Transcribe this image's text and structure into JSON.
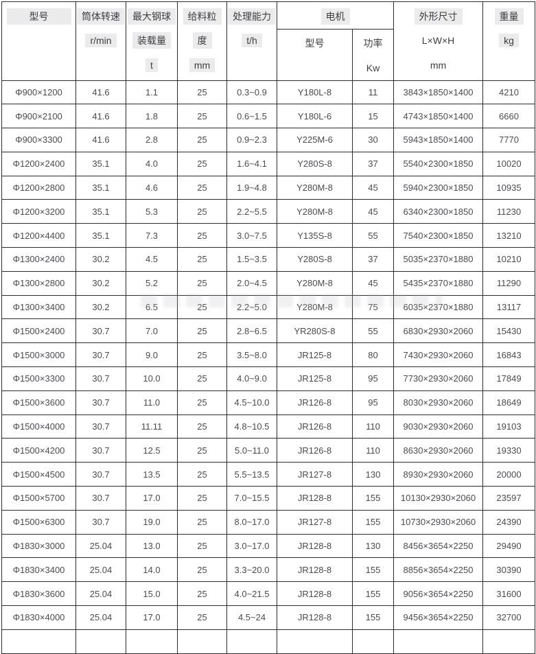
{
  "colors": {
    "header_highlight": "#ebebeb",
    "border": "#2b2b2b",
    "header_text": "#3d3d44",
    "cell_text": "#4a4a52",
    "background": "#ffffff"
  },
  "chart_data": {
    "type": "table",
    "motor_group": {
      "label": "电机"
    },
    "columns": [
      {
        "key": "model",
        "label_lines": [
          "型号"
        ]
      },
      {
        "key": "speed_rpm",
        "label_lines": [
          "筒体转速",
          "r/min"
        ]
      },
      {
        "key": "max_ball_load_t",
        "label_lines": [
          "最大钢球",
          "装载量",
          "t"
        ]
      },
      {
        "key": "feed_size_mm",
        "label_lines": [
          "给料粒",
          "度",
          "mm"
        ]
      },
      {
        "key": "capacity_tph",
        "label_lines": [
          "处理能力",
          "t/h"
        ]
      },
      {
        "key": "motor_model",
        "label_lines": [
          "型号"
        ],
        "group": "电机"
      },
      {
        "key": "motor_power_kw",
        "label_lines": [
          "功率",
          "Kw"
        ],
        "group": "电机"
      },
      {
        "key": "dimensions_lwh_mm",
        "label_lines": [
          "外形尺寸",
          "L×W×H",
          "mm"
        ]
      },
      {
        "key": "weight_kg",
        "label_lines": [
          "重量",
          "kg"
        ]
      }
    ],
    "rows": [
      [
        "Φ900×1200",
        "41.6",
        "1.1",
        "25",
        "0.3~0.9",
        "Y180L-8",
        "11",
        "3843×1850×1400",
        "4210"
      ],
      [
        "Φ900×2100",
        "41.6",
        "1.8",
        "25",
        "0.6~1.5",
        "Y180L-6",
        "15",
        "4743×1850×1400",
        "6660"
      ],
      [
        "Φ900×3300",
        "41.6",
        "2.8",
        "25",
        "0.9~2.3",
        "Y225M-6",
        "30",
        "5943×1850×1400",
        "7770"
      ],
      [
        "Φ1200×2400",
        "35.1",
        "4.0",
        "25",
        "1.6~4.1",
        "Y280S-8",
        "37",
        "5540×2300×1850",
        "10020"
      ],
      [
        "Φ1200×2800",
        "35.1",
        "4.6",
        "25",
        "1.9~4.8",
        "Y280M-8",
        "45",
        "5940×2300×1850",
        "10935"
      ],
      [
        "Φ1200×3200",
        "35.1",
        "5.3",
        "25",
        "2.2~5.5",
        "Y280M-8",
        "45",
        "6340×2300×1850",
        "11230"
      ],
      [
        "Φ1200×4400",
        "35.1",
        "7.3",
        "25",
        "3.0~7.5",
        "Y135S-8",
        "55",
        "7540×2300×1850",
        "13210"
      ],
      [
        "Φ1300×2400",
        "30.2",
        "4.5",
        "25",
        "1.5~3.5",
        "Y280S-8",
        "37",
        "5035×2370×1880",
        "10210"
      ],
      [
        "Φ1300×2800",
        "30.2",
        "5.2",
        "25",
        "2.0~4.5",
        "Y280M-8",
        "45",
        "5435×2370×1880",
        "11290"
      ],
      [
        "Φ1300×3400",
        "30.2",
        "6.5",
        "25",
        "2.2~5.0",
        "Y280M-8",
        "75",
        "6035×2370×1880",
        "13117"
      ],
      [
        "Φ1500×2400",
        "30.7",
        "7.0",
        "25",
        "2.8~6.5",
        "YR280S-8",
        "55",
        "6830×2930×2060",
        "15430"
      ],
      [
        "Φ1500×3000",
        "30.7",
        "9.0",
        "25",
        "3.5~8.0",
        "JR125-8",
        "80",
        "7430×2930×2060",
        "16843"
      ],
      [
        "Φ1500×3300",
        "30.7",
        "10.0",
        "25",
        "4.0~9.0",
        "JR125-8",
        "95",
        "7730×2930×2060",
        "17849"
      ],
      [
        "Φ1500×3600",
        "30.7",
        "11.0",
        "25",
        "4.5~10.0",
        "JR126-8",
        "95",
        "8030×2930×2060",
        "18649"
      ],
      [
        "Φ1500×4000",
        "30.7",
        "11.11",
        "25",
        "4.8~10.5",
        "JR126-8",
        "110",
        "9030×2930×2060",
        "19103"
      ],
      [
        "Φ1500×4200",
        "30.7",
        "12.5",
        "25",
        "5.0~11.0",
        "JR126-8",
        "110",
        "8630×2930×2060",
        "19330"
      ],
      [
        "Φ1500×4500",
        "30.7",
        "13.5",
        "25",
        "5.5~13.5",
        "JR127-8",
        "130",
        "8930×2930×2060",
        "20000"
      ],
      [
        "Φ1500×5700",
        "30.7",
        "17.0",
        "25",
        "7.0~15.5",
        "JR128-8",
        "155",
        "10130×2930×2060",
        "23597"
      ],
      [
        "Φ1500×6300",
        "30.7",
        "19.0",
        "25",
        "8.0~17.0",
        "JR127-8",
        "155",
        "10730×2930×2060",
        "24390"
      ],
      [
        "Φ1830×3000",
        "25.04",
        "13.0",
        "25",
        "3.0~17.0",
        "JR128-8",
        "130",
        "8456×3654×2250",
        "29490"
      ],
      [
        "Φ1830×3400",
        "25.04",
        "14.0",
        "25",
        "3.3~20.0",
        "JR128-8",
        "155",
        "8856×3654×2250",
        "30390"
      ],
      [
        "Φ1830×3600",
        "25.04",
        "15.0",
        "25",
        "4.0~21.5",
        "JR128-8",
        "155",
        "9056×3654×2250",
        "31600"
      ],
      [
        "Φ1830×4000",
        "25.04",
        "17.0",
        "25",
        "4.5~24",
        "JR128-8",
        "155",
        "9456×3654×2250",
        "32700"
      ]
    ]
  }
}
